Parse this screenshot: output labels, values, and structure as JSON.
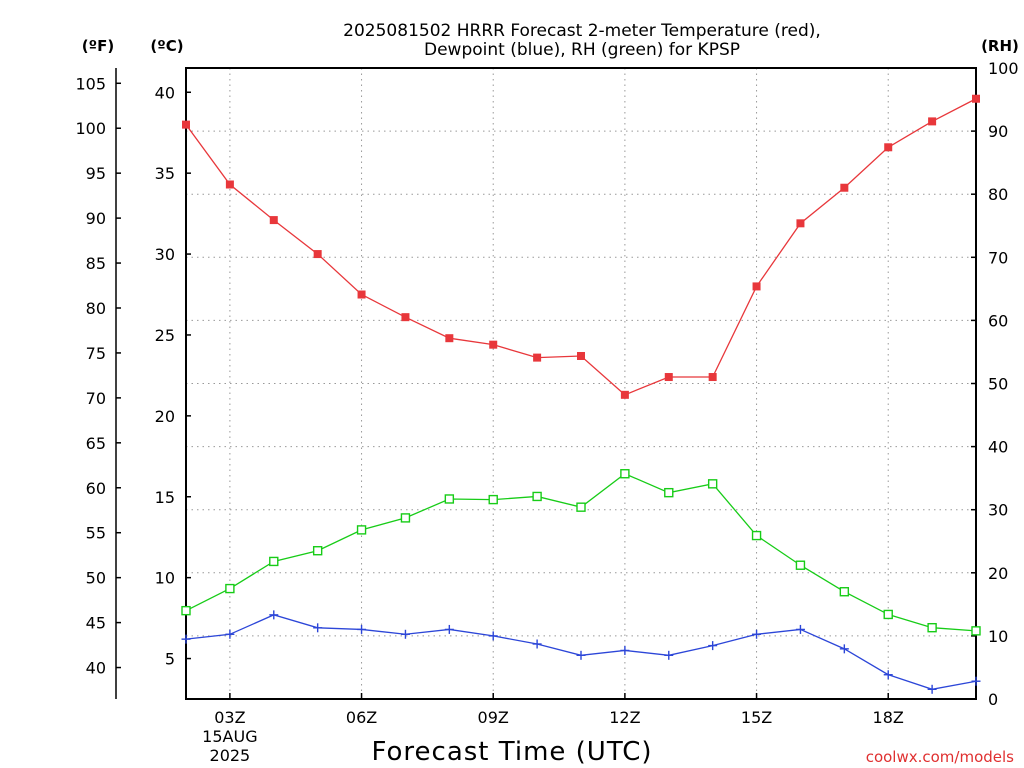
{
  "chart_data": {
    "type": "line",
    "title_line1": "2025081502 HRRR Forecast 2-meter Temperature (red),",
    "title_line2": "Dewpoint (blue), RH (green) for KPSP",
    "xlabel": "Forecast Time (UTC)",
    "unit_f": "(ºF)",
    "unit_c": "(ºC)",
    "unit_rh": "(RH)",
    "credit": "coolwx.com/models",
    "x_hours": [
      2,
      3,
      4,
      5,
      6,
      7,
      8,
      9,
      10,
      11,
      12,
      13,
      14,
      15,
      16,
      17,
      18,
      19,
      20
    ],
    "xlim": [
      2,
      20
    ],
    "x_ticks": [
      {
        "hour": 3,
        "label": "03Z",
        "sub1": "15AUG",
        "sub2": "2025"
      },
      {
        "hour": 6,
        "label": "06Z",
        "sub1": "",
        "sub2": ""
      },
      {
        "hour": 9,
        "label": "09Z",
        "sub1": "",
        "sub2": ""
      },
      {
        "hour": 12,
        "label": "12Z",
        "sub1": "",
        "sub2": ""
      },
      {
        "hour": 15,
        "label": "15Z",
        "sub1": "",
        "sub2": ""
      },
      {
        "hour": 18,
        "label": "18Z",
        "sub1": "",
        "sub2": ""
      }
    ],
    "celsius_lim": [
      2.5,
      41.5
    ],
    "celsius_ticks": [
      5,
      10,
      15,
      20,
      25,
      30,
      35,
      40
    ],
    "fahrenheit_ticks": [
      40,
      45,
      50,
      55,
      60,
      65,
      70,
      75,
      80,
      85,
      90,
      95,
      100,
      105
    ],
    "rh_lim": [
      0,
      100
    ],
    "rh_ticks": [
      0,
      10,
      20,
      30,
      40,
      50,
      60,
      70,
      80,
      90,
      100
    ],
    "grid": true,
    "series": [
      {
        "name": "Temperature",
        "axis": "C",
        "color": "#e8373b",
        "marker": "filled-square",
        "values": [
          38.0,
          34.3,
          32.1,
          30.0,
          27.5,
          26.1,
          24.8,
          24.4,
          23.6,
          23.7,
          21.3,
          22.4,
          22.4,
          28.0,
          31.9,
          34.1,
          36.6,
          38.2,
          39.6
        ]
      },
      {
        "name": "Dewpoint",
        "axis": "C",
        "color": "#2c46d8",
        "marker": "plus",
        "values": [
          6.2,
          6.5,
          7.7,
          6.9,
          6.8,
          6.5,
          6.8,
          6.4,
          5.9,
          5.2,
          5.5,
          5.2,
          5.8,
          6.5,
          6.8,
          5.6,
          4.0,
          3.1,
          3.6
        ]
      },
      {
        "name": "RH",
        "axis": "RH",
        "color": "#17cc17",
        "marker": "open-square",
        "values": [
          14,
          17.5,
          21.8,
          23.5,
          26.8,
          28.7,
          31.7,
          31.6,
          32.1,
          30.4,
          35.7,
          32.7,
          34.1,
          25.9,
          21.2,
          17.0,
          13.4,
          11.3,
          10.8
        ]
      }
    ]
  }
}
